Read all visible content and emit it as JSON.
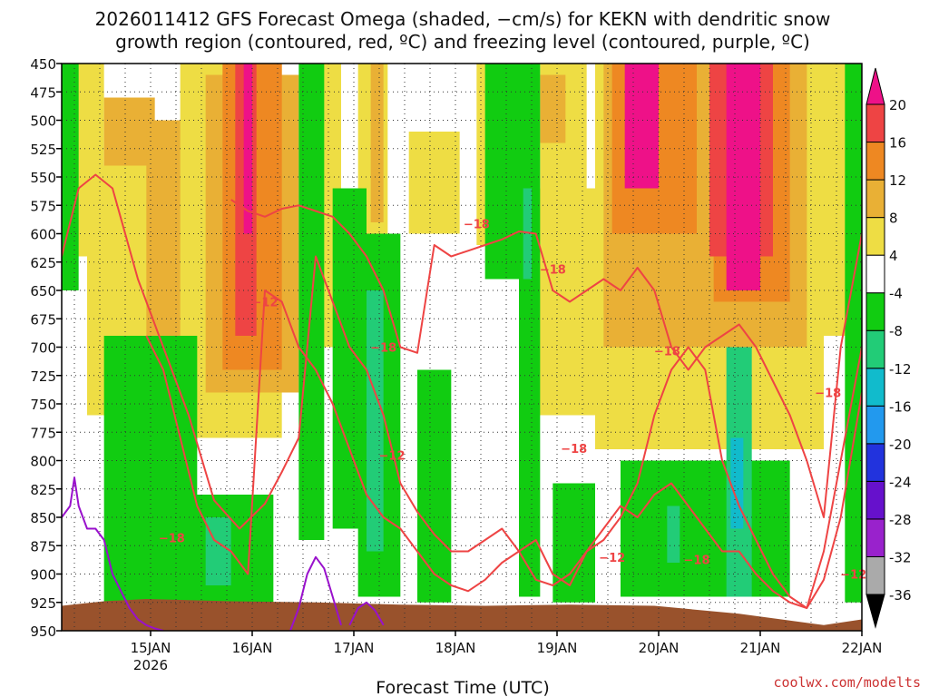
{
  "chart_data": {
    "type": "heatmap",
    "title_lines": [
      "2026011412 GFS Forecast Omega (shaded, −cm/s) for KEKN with dendritic snow",
      "growth region (contoured, red, ºC) and freezing level (contoured, purple, ºC)"
    ],
    "xlabel": "Forecast Time (UTC)",
    "credit": "coolwx.com/modelts",
    "x_ticks": [
      {
        "label": "15JAN",
        "sub": "2026",
        "t": 21
      },
      {
        "label": "16JAN",
        "sub": "",
        "t": 45
      },
      {
        "label": "17JAN",
        "sub": "",
        "t": 69
      },
      {
        "label": "18JAN",
        "sub": "",
        "t": 93
      },
      {
        "label": "19JAN",
        "sub": "",
        "t": 117
      },
      {
        "label": "20JAN",
        "sub": "",
        "t": 141
      },
      {
        "label": "21JAN",
        "sub": "",
        "t": 165
      },
      {
        "label": "22JAN",
        "sub": "",
        "t": 189
      }
    ],
    "x_range_hours": [
      0,
      189
    ],
    "y_levels": [
      "450",
      "475",
      "500",
      "525",
      "550",
      "575",
      "600",
      "625",
      "650",
      "675",
      "700",
      "725",
      "750",
      "775",
      "800",
      "825",
      "850",
      "875",
      "900",
      "925",
      "950"
    ],
    "y_range_hpa": [
      450,
      950
    ],
    "grid": true,
    "colorbar": {
      "bounds": [
        -36,
        -32,
        -28,
        -24,
        -20,
        -16,
        -12,
        -8,
        -4,
        4,
        8,
        12,
        16,
        20
      ],
      "tick_labels": [
        "20",
        "16",
        "12",
        "8",
        "4",
        "-4",
        "-8",
        "-12",
        "-16",
        "-20",
        "-24",
        "-28",
        "-32",
        "-36"
      ],
      "colors_bottom_to_top": [
        "#aaaaaa",
        "#9922cc",
        "#6611cc",
        "#2233dd",
        "#2299ee",
        "#11bbcc",
        "#22cc77",
        "#11cc11",
        "#ffffff",
        "#eedd44",
        "#e9b035",
        "#ee8822",
        "#ee4444",
        "#ee1188"
      ],
      "under_color": "#000000",
      "over_color": "#ee1188"
    },
    "omega_regions": [
      {
        "v": 6,
        "t0": 2,
        "t1": 10,
        "p0": 450,
        "p1": 620
      },
      {
        "v": 10,
        "t0": 10,
        "t1": 22,
        "p0": 480,
        "p1": 660
      },
      {
        "v": 6,
        "t0": 6,
        "t1": 34,
        "p0": 540,
        "p1": 760
      },
      {
        "v": 10,
        "t0": 20,
        "t1": 44,
        "p0": 500,
        "p1": 720
      },
      {
        "v": 14,
        "t0": 30,
        "t1": 43,
        "p0": 520,
        "p1": 700
      },
      {
        "v": 6,
        "t0": 28,
        "t1": 52,
        "p0": 450,
        "p1": 780
      },
      {
        "v": 10,
        "t0": 34,
        "t1": 56,
        "p0": 460,
        "p1": 740
      },
      {
        "v": 14,
        "t0": 38,
        "t1": 52,
        "p0": 450,
        "p1": 720
      },
      {
        "v": 18,
        "t0": 41,
        "t1": 46,
        "p0": 450,
        "p1": 690
      },
      {
        "v": 24,
        "t0": 43,
        "t1": 45,
        "p0": 450,
        "p1": 600
      },
      {
        "v": 6,
        "t0": 60,
        "t1": 66,
        "p0": 450,
        "p1": 700
      },
      {
        "v": 6,
        "t0": 70,
        "t1": 77,
        "p0": 450,
        "p1": 690
      },
      {
        "v": 10,
        "t0": 73,
        "t1": 76,
        "p0": 450,
        "p1": 590
      },
      {
        "v": 6,
        "t0": 82,
        "t1": 94,
        "p0": 510,
        "p1": 600
      },
      {
        "v": 6,
        "t0": 98,
        "t1": 110,
        "p0": 450,
        "p1": 610
      },
      {
        "v": 6,
        "t0": 108,
        "t1": 140,
        "p0": 560,
        "p1": 760
      },
      {
        "v": 6,
        "t0": 113,
        "t1": 124,
        "p0": 450,
        "p1": 560
      },
      {
        "v": 10,
        "t0": 113,
        "t1": 119,
        "p0": 460,
        "p1": 520
      },
      {
        "v": 6,
        "t0": 126,
        "t1": 180,
        "p0": 450,
        "p1": 790
      },
      {
        "v": 10,
        "t0": 128,
        "t1": 176,
        "p0": 450,
        "p1": 700
      },
      {
        "v": 14,
        "t0": 130,
        "t1": 150,
        "p0": 450,
        "p1": 600
      },
      {
        "v": 14,
        "t0": 154,
        "t1": 172,
        "p0": 450,
        "p1": 660
      },
      {
        "v": 18,
        "t0": 153,
        "t1": 168,
        "p0": 450,
        "p1": 620
      },
      {
        "v": 24,
        "t0": 133,
        "t1": 141,
        "p0": 450,
        "p1": 560
      },
      {
        "v": 24,
        "t0": 157,
        "t1": 165,
        "p0": 450,
        "p1": 650
      },
      {
        "v": 6,
        "t0": 178,
        "t1": 186,
        "p0": 450,
        "p1": 690
      },
      {
        "v": -6,
        "t0": 0,
        "t1": 4,
        "p0": 450,
        "p1": 650
      },
      {
        "v": -6,
        "t0": 10,
        "t1": 32,
        "p0": 690,
        "p1": 925
      },
      {
        "v": -6,
        "t0": 30,
        "t1": 50,
        "p0": 830,
        "p1": 925
      },
      {
        "v": -10,
        "t0": 34,
        "t1": 40,
        "p0": 850,
        "p1": 910
      },
      {
        "v": -6,
        "t0": 56,
        "t1": 62,
        "p0": 450,
        "p1": 870
      },
      {
        "v": -6,
        "t0": 64,
        "t1": 72,
        "p0": 560,
        "p1": 860
      },
      {
        "v": -6,
        "t0": 70,
        "t1": 80,
        "p0": 600,
        "p1": 920
      },
      {
        "v": -10,
        "t0": 72,
        "t1": 76,
        "p0": 650,
        "p1": 880
      },
      {
        "v": -6,
        "t0": 84,
        "t1": 92,
        "p0": 720,
        "p1": 925
      },
      {
        "v": -6,
        "t0": 100,
        "t1": 110,
        "p0": 450,
        "p1": 640
      },
      {
        "v": -6,
        "t0": 108,
        "t1": 113,
        "p0": 450,
        "p1": 920
      },
      {
        "v": -10,
        "t0": 109,
        "t1": 111,
        "p0": 560,
        "p1": 640
      },
      {
        "v": -6,
        "t0": 116,
        "t1": 126,
        "p0": 820,
        "p1": 925
      },
      {
        "v": -6,
        "t0": 132,
        "t1": 172,
        "p0": 800,
        "p1": 920
      },
      {
        "v": -10,
        "t0": 143,
        "t1": 146,
        "p0": 840,
        "p1": 890
      },
      {
        "v": -10,
        "t0": 157,
        "t1": 163,
        "p0": 700,
        "p1": 920
      },
      {
        "v": -14,
        "t0": 158,
        "t1": 161,
        "p0": 780,
        "p1": 860
      },
      {
        "v": -6,
        "t0": 185,
        "t1": 189,
        "p0": 450,
        "p1": 925
      }
    ],
    "series": [
      {
        "name": "-18",
        "kind": "dgz_upper",
        "x": [
          0,
          4,
          8,
          12,
          18,
          24,
          30,
          36,
          42,
          48,
          52,
          56,
          60,
          64,
          68,
          72,
          76,
          80,
          84,
          88,
          92,
          96,
          100,
          104,
          108,
          112,
          116,
          120,
          124,
          128,
          132,
          136,
          140,
          144,
          148,
          152,
          156,
          160,
          164,
          168,
          172,
          176,
          180,
          184,
          189
        ],
        "y": [
          620,
          560,
          548,
          560,
          640,
          700,
          760,
          835,
          860,
          838,
          810,
          780,
          620,
          660,
          700,
          720,
          760,
          820,
          845,
          865,
          880,
          880,
          870,
          860,
          880,
          905,
          910,
          900,
          880,
          870,
          850,
          820,
          760,
          720,
          700,
          720,
          800,
          840,
          870,
          900,
          920,
          930,
          905,
          850,
          740
        ]
      },
      {
        "name": "-18",
        "kind": "dgz_lower_top",
        "x": [
          40,
          44,
          48,
          52,
          56,
          60,
          64,
          68,
          72,
          76,
          80,
          84,
          88,
          92,
          96,
          100,
          104,
          108,
          112,
          116,
          120,
          124,
          128,
          132,
          136,
          140,
          144,
          148,
          152,
          156,
          160,
          164,
          168,
          172,
          176,
          180,
          184,
          189
        ],
        "y": [
          570,
          580,
          585,
          578,
          575,
          580,
          585,
          600,
          620,
          650,
          700,
          705,
          610,
          620,
          615,
          610,
          605,
          598,
          600,
          650,
          660,
          650,
          640,
          650,
          630,
          650,
          700,
          720,
          700,
          690,
          680,
          700,
          730,
          760,
          800,
          850,
          700,
          600
        ]
      },
      {
        "name": "-12",
        "kind": "dgz_lower_bottom",
        "x": [
          20,
          24,
          28,
          32,
          36,
          40,
          44,
          48,
          52,
          56,
          60,
          64,
          68,
          72,
          76,
          80,
          84,
          88,
          92,
          96,
          100,
          104,
          108,
          112,
          116,
          120,
          124,
          128,
          132,
          136,
          140,
          144,
          148,
          152,
          156,
          160,
          164,
          168,
          172,
          176,
          180,
          184,
          189
        ],
        "y": [
          690,
          720,
          780,
          840,
          870,
          880,
          900,
          650,
          660,
          700,
          720,
          750,
          790,
          830,
          850,
          860,
          880,
          900,
          910,
          915,
          905,
          890,
          880,
          870,
          900,
          910,
          880,
          860,
          840,
          850,
          830,
          820,
          840,
          860,
          880,
          880,
          900,
          915,
          925,
          930,
          880,
          800,
          700
        ]
      },
      {
        "name": "0",
        "kind": "freezing",
        "x": [
          0,
          2,
          3,
          4,
          6,
          8,
          10,
          12,
          14,
          16,
          18,
          20,
          22,
          24
        ],
        "y": [
          850,
          840,
          815,
          840,
          860,
          860,
          870,
          900,
          915,
          930,
          940,
          945,
          948,
          950
        ]
      },
      {
        "name": "0",
        "kind": "freezing",
        "x": [
          54,
          56,
          58,
          60,
          62,
          64,
          66
        ],
        "y": [
          950,
          930,
          900,
          885,
          895,
          920,
          945
        ]
      },
      {
        "name": "0",
        "kind": "freezing",
        "x": [
          68,
          70,
          72,
          74,
          76
        ],
        "y": [
          945,
          930,
          925,
          932,
          945
        ]
      }
    ],
    "contour_labels": [
      {
        "text": "−18",
        "t": 26,
        "p": 868
      },
      {
        "text": "−12",
        "t": 48,
        "p": 660
      },
      {
        "text": "−18",
        "t": 76,
        "p": 700
      },
      {
        "text": "−12",
        "t": 78,
        "p": 795
      },
      {
        "text": "−18",
        "t": 98,
        "p": 591
      },
      {
        "text": "−18",
        "t": 116,
        "p": 631
      },
      {
        "text": "−18",
        "t": 121,
        "p": 789
      },
      {
        "text": "−18",
        "t": 143,
        "p": 703
      },
      {
        "text": "−12",
        "t": 130,
        "p": 885
      },
      {
        "text": "−18",
        "t": 150,
        "p": 887
      },
      {
        "text": "−18",
        "t": 181,
        "p": 740
      },
      {
        "text": "−12",
        "t": 187,
        "p": 900
      }
    ],
    "terrain": {
      "color": "#99522c",
      "x": [
        0,
        10,
        20,
        40,
        60,
        80,
        100,
        120,
        140,
        160,
        170,
        180,
        189
      ],
      "y": [
        928,
        924,
        922,
        924,
        925,
        927,
        928,
        927,
        928,
        935,
        940,
        945,
        940
      ]
    }
  }
}
